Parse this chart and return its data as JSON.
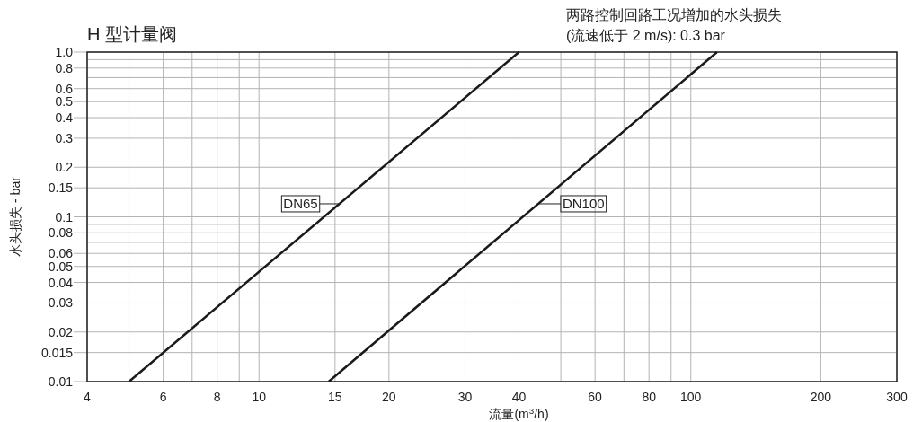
{
  "chart_data": {
    "type": "line",
    "title": "H 型计量阀",
    "xlabel": "流量(m$^{3}$/h)",
    "ylabel": "水头损失 - bar",
    "annotations": [
      "两路控制回路工况增加的水头损失",
      "(流速低于 2 m/s): 0.3 bar"
    ],
    "log": "xy",
    "grid": true,
    "marker": "none",
    "line_style": "solid",
    "xlim": [
      4,
      300
    ],
    "ylim": [
      0.01,
      1
    ],
    "xticks": [
      4,
      {
        "value": 5,
        "label": null
      },
      6,
      {
        "value": 7,
        "label": null
      },
      8,
      {
        "value": 9,
        "label": null
      },
      10,
      15,
      20,
      30,
      40,
      {
        "value": 50,
        "label": null
      },
      60,
      {
        "value": 70,
        "label": null
      },
      80,
      {
        "value": 90,
        "label": null
      },
      100,
      200,
      300
    ],
    "yticks": [
      0.01,
      0.015,
      0.02,
      0.03,
      0.04,
      0.05,
      0.06,
      {
        "value": 0.07,
        "label": null
      },
      0.08,
      {
        "value": 0.09,
        "label": null
      },
      0.1,
      0.15,
      0.2,
      0.3,
      0.4,
      0.5,
      0.6,
      {
        "value": 0.7,
        "label": null
      },
      0.8,
      {
        "value": 0.9,
        "label": null
      },
      {
        "value": 1,
        "label": "1.0"
      }
    ],
    "series": [
      {
        "name": "DN65",
        "color": "#1a1a1a",
        "x": [
          5,
          40
        ],
        "values": [
          0.01,
          1.0
        ]
      },
      {
        "name": "DN100",
        "color": "#1a1a1a",
        "x": [
          14.5,
          115
        ],
        "values": [
          0.01,
          1.0
        ]
      }
    ]
  }
}
